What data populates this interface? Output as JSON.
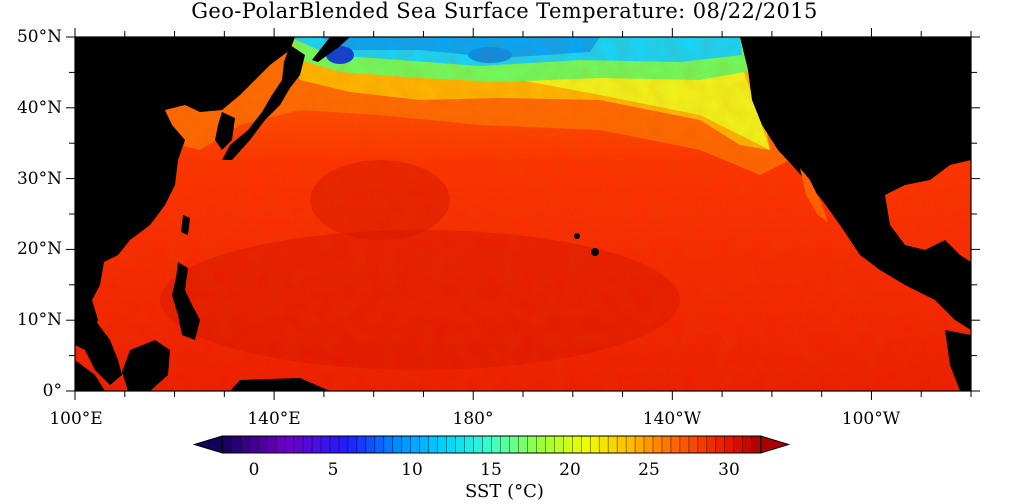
{
  "title": "Geo-PolarBlended Sea Surface Temperature: 08/22/2015",
  "map": {
    "lat_labels": [
      "50°N",
      "40°N",
      "30°N",
      "20°N",
      "10°N",
      "0°"
    ],
    "lon_labels": [
      "100°E",
      "140°E",
      "180°",
      "140°W",
      "100°W"
    ],
    "lat_range": [
      0,
      50
    ],
    "lon_range": [
      "100°E",
      "80°W"
    ],
    "land_color": "#000000"
  },
  "colorbar": {
    "tick_labels": [
      "0",
      "5",
      "10",
      "15",
      "20",
      "25",
      "30"
    ],
    "range": [
      -2,
      32
    ],
    "units_label": "SST (°C)",
    "extend": "both"
  }
}
